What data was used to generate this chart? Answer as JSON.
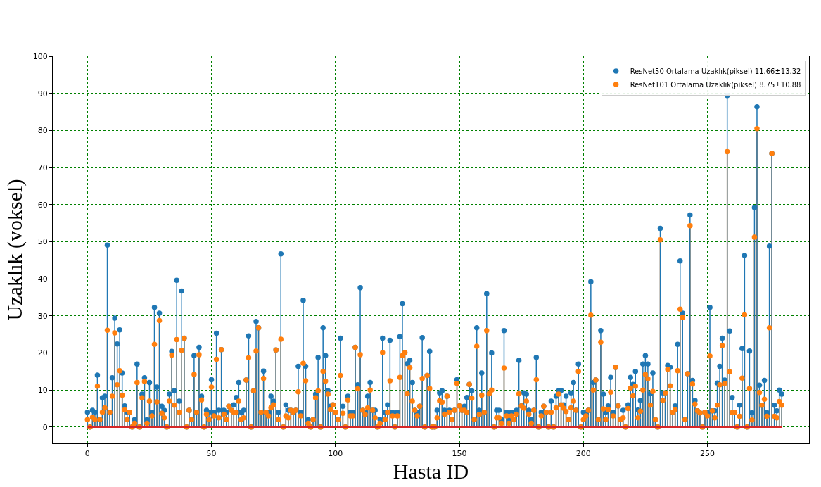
{
  "chart_data": {
    "type": "lollipop",
    "xlabel": "Hasta ID",
    "ylabel": "Uzaklık (voksel)",
    "x": [
      0,
      1,
      2,
      3,
      4,
      5,
      6,
      7,
      8,
      9,
      10,
      11,
      12,
      13,
      14,
      15,
      16,
      17,
      18,
      19,
      20,
      21,
      22,
      23,
      24,
      25,
      26,
      27,
      28,
      29,
      30,
      31,
      32,
      33,
      34,
      35,
      36,
      37,
      38,
      39,
      40,
      41,
      42,
      43,
      44,
      45,
      46,
      47,
      48,
      49,
      50,
      51,
      52,
      53,
      54,
      55,
      56,
      57,
      58,
      59,
      60,
      61,
      62,
      63,
      64,
      65,
      66,
      67,
      68,
      69,
      70,
      71,
      72,
      73,
      74,
      75,
      76,
      77,
      78,
      79,
      80,
      81,
      82,
      83,
      84,
      85,
      86,
      87,
      88,
      89,
      90,
      91,
      92,
      93,
      94,
      95,
      96,
      97,
      98,
      99,
      100,
      101,
      102,
      103,
      104,
      105,
      106,
      107,
      108,
      109,
      110,
      111,
      112,
      113,
      114,
      115,
      116,
      117,
      118,
      119,
      120,
      121,
      122,
      123,
      124,
      125,
      126,
      127,
      128,
      129,
      130,
      131,
      132,
      133,
      134,
      135,
      136,
      137,
      138,
      139,
      140,
      141,
      142,
      143,
      144,
      145,
      146,
      147,
      148,
      149,
      150,
      151,
      152,
      153,
      154,
      155,
      156,
      157,
      158,
      159,
      160,
      161,
      162,
      163,
      164,
      165,
      166,
      167,
      168,
      169,
      170,
      171,
      172,
      173,
      174,
      175,
      176,
      177,
      178,
      179,
      180,
      181,
      182,
      183,
      184,
      185,
      186,
      187,
      188,
      189,
      190,
      191,
      192,
      193,
      194,
      195,
      196,
      197,
      198,
      199,
      200,
      201,
      202,
      203,
      204,
      205,
      206,
      207,
      208,
      209,
      210,
      211,
      212,
      213,
      214,
      215,
      216,
      217,
      218,
      219,
      220,
      221,
      222,
      223,
      224,
      225,
      226,
      227,
      228,
      229,
      230,
      231,
      232,
      233,
      234,
      235,
      236,
      237,
      238,
      239,
      240,
      241,
      242,
      243,
      244,
      245,
      246,
      247,
      248,
      249,
      250,
      251,
      252,
      253,
      254,
      255,
      256,
      257,
      258,
      259,
      260,
      261,
      262,
      263,
      264,
      265,
      266,
      267,
      268,
      269,
      270,
      271,
      272,
      273,
      274,
      275,
      276,
      277,
      278,
      279,
      280
    ],
    "series": [
      {
        "name": "ResNet50 Ortalama Uzaklık(piksel) 11.66±13.32",
        "color": "#1f77b4",
        "values": [
          4.0,
          0,
          4.5,
          4.0,
          14.0,
          2.0,
          7.9,
          8.3,
          49.1,
          4.0,
          13.3,
          29.4,
          22.4,
          26.2,
          14.6,
          5.7,
          4.0,
          4.0,
          0,
          2.0,
          17.0,
          0,
          8.9,
          13.3,
          2.0,
          12.0,
          4.0,
          32.3,
          10.8,
          30.7,
          5.6,
          4.5,
          0,
          8.9,
          20.4,
          9.8,
          39.6,
          7.0,
          36.7,
          24.0,
          0,
          4.5,
          2.0,
          19.3,
          4.0,
          21.5,
          8.3,
          0,
          4.5,
          4.0,
          12.8,
          4.0,
          25.3,
          4.5,
          20.9,
          4.5,
          4.0,
          5.6,
          4.5,
          6.0,
          8.0,
          12.0,
          4.0,
          4.5,
          12.7,
          24.6,
          0,
          9.8,
          28.5,
          26.8,
          4.0,
          15.1,
          4.0,
          4.0,
          8.3,
          7.0,
          20.8,
          4.0,
          46.7,
          0,
          6.0,
          4.5,
          4.5,
          4.0,
          4.5,
          16.4,
          4.0,
          34.2,
          16.4,
          2.0,
          0,
          2.0,
          8.9,
          18.8,
          0,
          26.8,
          19.3,
          9.8,
          5.6,
          6.0,
          4.0,
          2.0,
          24.0,
          5.6,
          0,
          8.3,
          4.0,
          4.0,
          21.5,
          11.4,
          37.6,
          4.5,
          4.0,
          8.3,
          12.0,
          4.5,
          4.5,
          0,
          2.0,
          24.0,
          4.0,
          6.0,
          23.4,
          4.0,
          0,
          4.0,
          24.4,
          33.3,
          20.1,
          17.1,
          18.0,
          12.0,
          4.5,
          4.0,
          5.6,
          24.1,
          0,
          13.9,
          20.4,
          0,
          0,
          4.5,
          9.2,
          9.8,
          4.5,
          8.3,
          4.5,
          2.0,
          4.5,
          12.8,
          5.7,
          4.5,
          5.6,
          8.0,
          11.5,
          9.8,
          2.0,
          26.8,
          4.5,
          14.6,
          4.0,
          36.0,
          9.0,
          20.0,
          0,
          4.5,
          4.5,
          2.0,
          26.0,
          4.0,
          2.0,
          4.0,
          2.0,
          4.5,
          18.0,
          5.7,
          9.2,
          8.9,
          4.5,
          2.0,
          4.5,
          18.8,
          0,
          4.0,
          5.6,
          4.0,
          0,
          7.0,
          0,
          8.3,
          9.8,
          9.9,
          6.0,
          8.3,
          2.0,
          9.2,
          12.0,
          4.5,
          17.0,
          0,
          4.0,
          4.0,
          4.5,
          39.2,
          12.0,
          12.7,
          2.0,
          26.0,
          8.9,
          4.0,
          5.7,
          13.4,
          4.0,
          16.1,
          5.7,
          2.0,
          4.5,
          0,
          6.0,
          13.4,
          11.5,
          15.0,
          4.6,
          7.2,
          17.0,
          19.3,
          17.0,
          9.0,
          14.6,
          2.0,
          0,
          53.6,
          9.2,
          9.2,
          16.6,
          16.1,
          4.0,
          5.7,
          22.3,
          44.8,
          30.7,
          2.0,
          14.4,
          57.2,
          12.6,
          7.2,
          4.4,
          3.8,
          0,
          4.0,
          4.0,
          32.3,
          4.4,
          4.4,
          11.9,
          16.4,
          24.0,
          12.7,
          89.4,
          25.9,
          8.0,
          3.9,
          0,
          5.9,
          21.2,
          46.3,
          0,
          20.5,
          3.9,
          59.2,
          86.4,
          11.3,
          5.9,
          12.6,
          3.9,
          48.8,
          73.8,
          5.9,
          4.4,
          10.0,
          8.9
        ]
      },
      {
        "name": "ResNet101 Ortalama Uzaklık(piksel) 8.75±10.88",
        "color": "#ff7f0e",
        "values": [
          2.0,
          0,
          2.6,
          2.0,
          11.0,
          2.0,
          4.0,
          5.2,
          26.1,
          4.0,
          8.3,
          25.4,
          11.4,
          15.2,
          8.6,
          4.6,
          2.0,
          4.0,
          0,
          1.0,
          12.0,
          0,
          7.9,
          12.3,
          1.0,
          7.0,
          3.0,
          22.3,
          6.8,
          28.7,
          3.7,
          2.5,
          0,
          7.0,
          19.4,
          5.9,
          23.6,
          4.0,
          20.7,
          24.0,
          0,
          4.5,
          2.0,
          14.2,
          4.0,
          19.5,
          7.3,
          0,
          3.5,
          2.0,
          10.8,
          3.0,
          18.3,
          2.5,
          20.9,
          3.5,
          2.0,
          5.6,
          4.5,
          4.0,
          4.0,
          7.0,
          2.0,
          2.5,
          12.7,
          18.7,
          0,
          9.8,
          20.5,
          26.8,
          4.0,
          13.1,
          4.0,
          3.0,
          5.2,
          6.0,
          20.8,
          2.0,
          23.7,
          0,
          3.0,
          2.5,
          4.5,
          4.0,
          4.5,
          9.5,
          3.0,
          17.2,
          12.5,
          1.0,
          0,
          2.0,
          7.9,
          9.8,
          0,
          15.0,
          12.4,
          8.9,
          4.7,
          6.0,
          4.0,
          2.0,
          13.9,
          3.7,
          0,
          7.3,
          3.0,
          3.0,
          21.5,
          10.3,
          19.5,
          4.5,
          3.4,
          5.2,
          10.0,
          4.5,
          2.5,
          0,
          1.0,
          20.1,
          2.0,
          4.0,
          12.5,
          3.0,
          0,
          3.0,
          13.4,
          19.3,
          20.1,
          9.0,
          16.0,
          7.0,
          4.5,
          3.0,
          5.6,
          13.1,
          0,
          13.9,
          10.4,
          0,
          0,
          2.5,
          7.1,
          6.7,
          3.5,
          8.3,
          4.0,
          2.0,
          4.5,
          11.8,
          5.7,
          4.5,
          4.5,
          4.0,
          11.5,
          7.8,
          2.0,
          21.8,
          3.4,
          8.6,
          4.0,
          26.0,
          9.0,
          10.0,
          0,
          2.5,
          2.5,
          1.0,
          15.9,
          3.0,
          1.0,
          3.0,
          2.0,
          3.5,
          9.0,
          5.7,
          5.1,
          7.0,
          3.5,
          1.0,
          4.5,
          12.8,
          0,
          3.0,
          5.6,
          4.0,
          0,
          4.0,
          0,
          5.2,
          8.9,
          6.0,
          5.1,
          4.2,
          2.0,
          5.2,
          7.0,
          4.5,
          15.0,
          0,
          2.0,
          3.0,
          4.5,
          30.2,
          10.0,
          12.7,
          2.0,
          22.9,
          4.9,
          2.0,
          4.7,
          9.4,
          3.0,
          16.1,
          5.7,
          2.0,
          2.5,
          0,
          5.0,
          10.5,
          8.4,
          11.0,
          2.5,
          4.3,
          10.0,
          14.2,
          13.0,
          5.9,
          9.6,
          2.0,
          0,
          50.5,
          7.2,
          9.2,
          15.6,
          11.1,
          4.0,
          4.7,
          15.2,
          31.8,
          29.6,
          2.0,
          14.4,
          54.3,
          11.6,
          6.2,
          4.4,
          3.8,
          0,
          4.0,
          3.0,
          19.2,
          4.4,
          2.5,
          5.9,
          11.4,
          22.0,
          11.8,
          74.3,
          14.9,
          3.9,
          3.9,
          0,
          2.9,
          13.2,
          30.3,
          0,
          10.4,
          1.9,
          51.2,
          80.5,
          9.3,
          5.9,
          7.5,
          2.9,
          26.8,
          73.8,
          2.9,
          2.5,
          6.9,
          5.9
        ]
      }
    ],
    "xlim": [
      -14,
      291
    ],
    "xticks": [
      0,
      50,
      100,
      150,
      200,
      250
    ],
    "ylim": [
      -4.4,
      100
    ],
    "yticks": [
      0,
      10,
      20,
      30,
      40,
      50,
      60,
      70,
      80,
      90,
      100
    ],
    "ref_lines": [
      {
        "axis": "y",
        "value": 0,
        "color": "#d62728"
      }
    ],
    "grid": true,
    "legend": "top right",
    "marker": "circle"
  }
}
